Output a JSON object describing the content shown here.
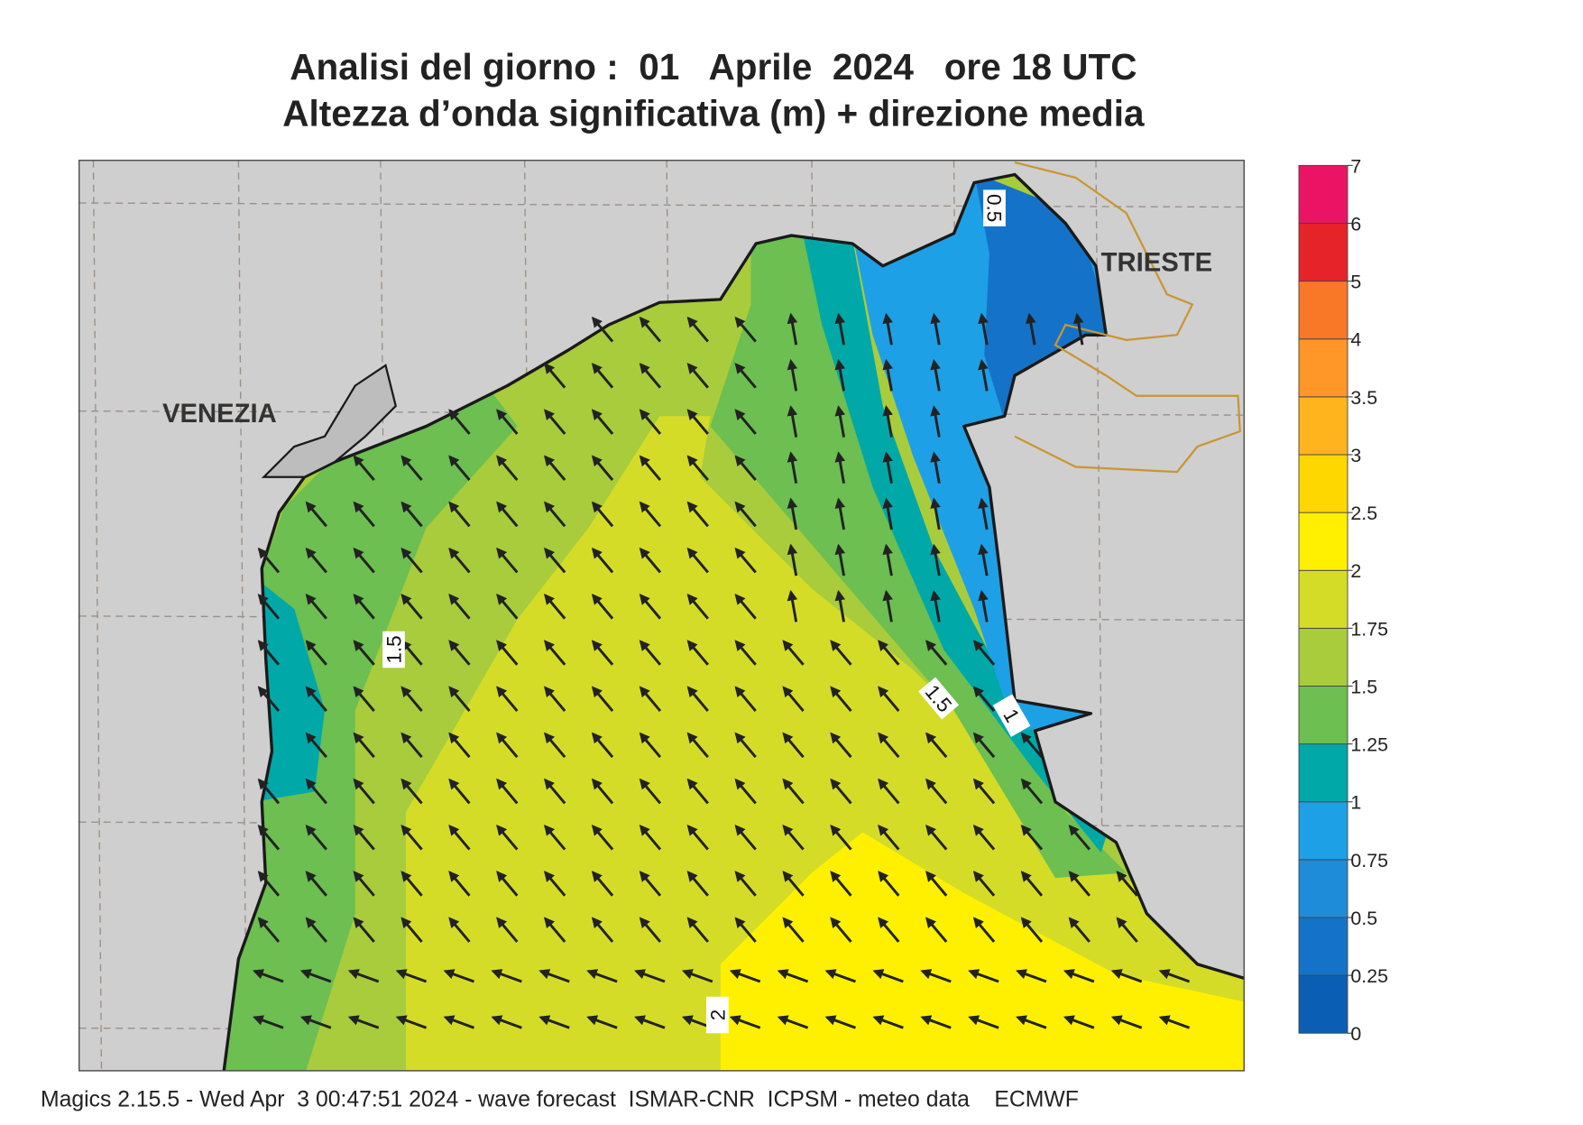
{
  "header": {
    "title": "Analisi del giorno :  01   Aprile  2024   ore 18 UTC",
    "subtitle": "Altezza d’onda significativa (m) + direzione media"
  },
  "map": {
    "places": [
      "VENEZIA",
      "TRIESTE"
    ],
    "contour_labels": [
      1.5,
      1.5,
      2,
      1,
      0.5
    ]
  },
  "colorbar": {
    "ticks": [
      0,
      0.25,
      0.5,
      0.75,
      1,
      1.25,
      1.5,
      1.75,
      2,
      2.5,
      3,
      3.5,
      4,
      5,
      6,
      7
    ],
    "colors": [
      "#0a5fb4",
      "#1473c8",
      "#1e8cd8",
      "#1ea0e6",
      "#00a8a8",
      "#6cbf50",
      "#a8cc3c",
      "#d4dc28",
      "#fff000",
      "#ffd700",
      "#ffb41e",
      "#ff9628",
      "#f87828",
      "#e62328",
      "#eb1464"
    ]
  },
  "footer": "Magics 2.15.5 - Wed Apr  3 00:47:51 2024 - wave forecast  ISMAR-CNR  ICPSM - meteo data    ECMWF"
}
